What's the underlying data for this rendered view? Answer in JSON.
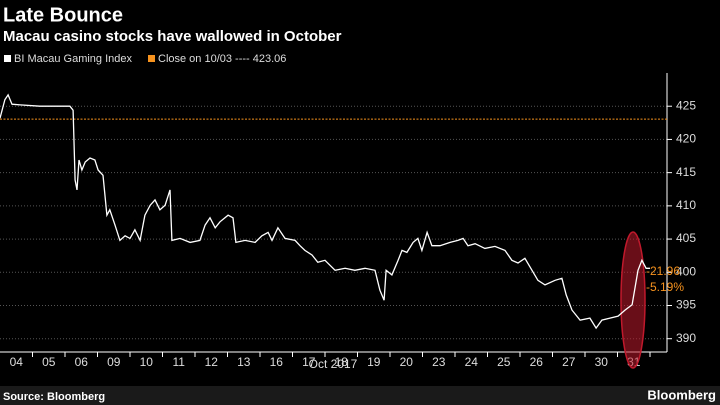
{
  "chart_data": {
    "type": "line",
    "title": "Late Bounce",
    "subtitle": "Macau casino stocks have wallowed in October",
    "xlabel": "Oct 2017",
    "source": "Source: Bloomberg",
    "brand": "Bloomberg",
    "xlim": [
      0,
      20
    ],
    "xticks": [
      {
        "value": 0.5,
        "label": "04"
      },
      {
        "value": 1.5,
        "label": "05"
      },
      {
        "value": 2.5,
        "label": "06"
      },
      {
        "value": 3.5,
        "label": "09"
      },
      {
        "value": 4.5,
        "label": "10"
      },
      {
        "value": 5.5,
        "label": "11"
      },
      {
        "value": 6.5,
        "label": "12"
      },
      {
        "value": 7.5,
        "label": "13"
      },
      {
        "value": 8.5,
        "label": "16"
      },
      {
        "value": 9.5,
        "label": "17"
      },
      {
        "value": 10.5,
        "label": "18"
      },
      {
        "value": 11.5,
        "label": "19"
      },
      {
        "value": 12.5,
        "label": "20"
      },
      {
        "value": 13.5,
        "label": "23"
      },
      {
        "value": 14.5,
        "label": "24"
      },
      {
        "value": 15.5,
        "label": "25"
      },
      {
        "value": 16.5,
        "label": "26"
      },
      {
        "value": 17.5,
        "label": "27"
      },
      {
        "value": 18.5,
        "label": "30"
      },
      {
        "value": 19.5,
        "label": "31"
      }
    ],
    "ylim": [
      388,
      430
    ],
    "yticks": [
      390,
      395,
      400,
      405,
      410,
      415,
      420,
      425
    ],
    "grid": true,
    "x": [
      0,
      0.15,
      0.25,
      0.37,
      0.62,
      1.23,
      2.15,
      2.25,
      2.31,
      2.37,
      2.43,
      2.52,
      2.62,
      2.77,
      2.92,
      3.02,
      3.17,
      3.29,
      3.38,
      3.54,
      3.69,
      3.85,
      4,
      4.15,
      4.31,
      4.46,
      4.62,
      4.77,
      4.92,
      5.08,
      5.23,
      5.29,
      5.54,
      5.85,
      6.15,
      6.31,
      6.46,
      6.62,
      6.77,
      7.02,
      7.17,
      7.26,
      7.54,
      7.85,
      8.06,
      8.25,
      8.37,
      8.55,
      8.77,
      9.08,
      9.23,
      9.38,
      9.6,
      9.78,
      10,
      10.31,
      10.62,
      10.92,
      11.23,
      11.54,
      11.69,
      11.82,
      11.88,
      12.06,
      12.25,
      12.37,
      12.52,
      12.71,
      12.86,
      12.98,
      13.14,
      13.29,
      13.54,
      13.85,
      14.09,
      14.25,
      14.4,
      14.62,
      14.92,
      15.23,
      15.54,
      15.75,
      15.94,
      16.15,
      16.37,
      16.55,
      16.77,
      17.08,
      17.29,
      17.42,
      17.6,
      17.85,
      18.15,
      18.34,
      18.52,
      18.77,
      19.02,
      19.23,
      19.45,
      19.63,
      19.75,
      19.88,
      20
    ],
    "series": [
      {
        "name": "BI Macau Gaming Index",
        "color": "#ffffff",
        "values": [
          423.2,
          426,
          426.7,
          425.3,
          425.2,
          425,
          425,
          424.4,
          413.9,
          412.4,
          416.9,
          415.4,
          416.6,
          417.2,
          416.9,
          415.4,
          414.6,
          408.6,
          409.4,
          407.1,
          404.8,
          405.5,
          405.1,
          406.4,
          404.8,
          408.6,
          410.1,
          410.9,
          409.4,
          410.1,
          412.4,
          404.8,
          405.1,
          404.5,
          404.8,
          407.1,
          408.2,
          406.7,
          407.6,
          408.6,
          408.2,
          404.5,
          404.8,
          404.5,
          405.5,
          406,
          404.8,
          406.7,
          405.1,
          404.8,
          404,
          403.3,
          402.6,
          401.5,
          401.8,
          400.3,
          400.6,
          400.3,
          400.6,
          400.3,
          397.3,
          395.8,
          400.3,
          399.6,
          401.8,
          403.3,
          403,
          404.5,
          405.1,
          403.3,
          406,
          404,
          404,
          404.5,
          404.8,
          405.1,
          404,
          404.3,
          403.6,
          403.9,
          403.3,
          401.8,
          401.4,
          402.1,
          400.3,
          398.8,
          398.1,
          398.8,
          399.1,
          396.6,
          394.3,
          392.8,
          393.1,
          391.6,
          392.8,
          393.1,
          393.4,
          394.3,
          395.1,
          400.3,
          401.8,
          400.6,
          400.6
        ]
      }
    ],
    "reference": {
      "name": "Close on 10/03 ---- 423.06",
      "value": 423.06,
      "color": "#f7931e"
    },
    "annotations": [
      "-21.96",
      "-5.19%"
    ],
    "highlight_color": "#c0192c"
  }
}
